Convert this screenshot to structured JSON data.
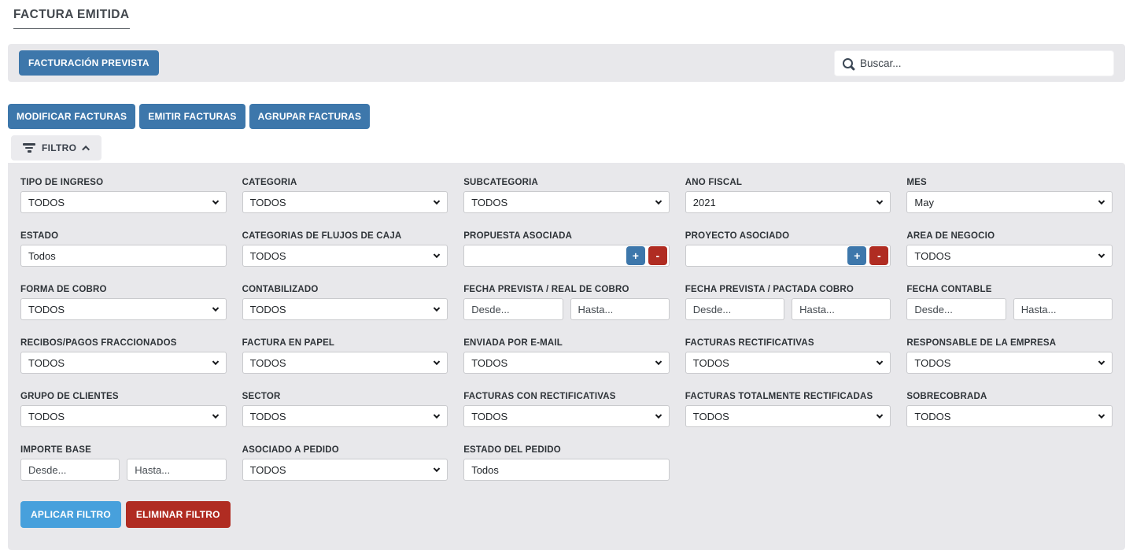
{
  "page": {
    "title": "FACTURA EMITIDA"
  },
  "toolbar": {
    "facturacion_prevista_label": "FACTURACIÓN PREVISTA",
    "search_placeholder": "Buscar..."
  },
  "actions": {
    "modificar_label": "MODIFICAR FACTURAS",
    "emitir_label": "EMITIR FACTURAS",
    "agrupar_label": "AGRUPAR FACTURAS"
  },
  "filter": {
    "toggle_label": "FILTRO",
    "apply_label": "APLICAR FILTRO",
    "clear_label": "ELIMINAR FILTRO",
    "fields": {
      "tipo_de_ingreso": {
        "label": "TIPO DE INGRESO",
        "value": "TODOS"
      },
      "categoria": {
        "label": "CATEGORÍA",
        "value": "TODOS"
      },
      "subcategoria": {
        "label": "SUBCATEGORÍA",
        "value": "TODOS"
      },
      "ano_fiscal": {
        "label": "AÑO FISCAL",
        "value": "2021"
      },
      "mes": {
        "label": "MES",
        "value": "May"
      },
      "estado": {
        "label": "ESTADO",
        "value": "Todos"
      },
      "categorias_flujos_caja": {
        "label": "CATEGORÍAS DE FLUJOS DE CAJA",
        "value": "TODOS"
      },
      "propuesta_asociada": {
        "label": "PROPUESTA ASOCIADA",
        "value": "",
        "add_label": "+",
        "remove_label": "-"
      },
      "proyecto_asociado": {
        "label": "PROYECTO ASOCIADO",
        "value": "",
        "add_label": "+",
        "remove_label": "-"
      },
      "area_de_negocio": {
        "label": "ÁREA DE NEGOCIO",
        "value": "TODOS"
      },
      "forma_de_cobro": {
        "label": "FORMA DE COBRO",
        "value": "TODOS"
      },
      "contabilizado": {
        "label": "CONTABILIZADO",
        "value": "TODOS"
      },
      "fecha_prevista_real_cobro": {
        "label": "FECHA PREVISTA / REAL DE COBRO",
        "from_placeholder": "Desde...",
        "to_placeholder": "Hasta..."
      },
      "fecha_prevista_pactada_cobro": {
        "label": "FECHA PREVISTA / PACTADA COBRO",
        "from_placeholder": "Desde...",
        "to_placeholder": "Hasta..."
      },
      "fecha_contable": {
        "label": "FECHA CONTABLE",
        "from_placeholder": "Desde...",
        "to_placeholder": "Hasta..."
      },
      "recibos_pagos_fraccionados": {
        "label": "RECIBOS/PAGOS FRACCIONADOS",
        "value": "TODOS"
      },
      "factura_en_papel": {
        "label": "FACTURA EN PAPEL",
        "value": "TODOS"
      },
      "enviada_por_email": {
        "label": "ENVIADA POR E-MAIL",
        "value": "TODOS"
      },
      "facturas_rectificativas": {
        "label": "FACTURAS RECTIFICATIVAS",
        "value": "TODOS"
      },
      "responsable_de_la_empresa": {
        "label": "RESPONSABLE DE LA EMPRESA",
        "value": "TODOS"
      },
      "grupo_de_clientes": {
        "label": "GRUPO DE CLIENTES",
        "value": "TODOS"
      },
      "sector": {
        "label": "SECTOR",
        "value": "TODOS"
      },
      "facturas_con_rectificativas": {
        "label": "FACTURAS CON RECTIFICATIVAS",
        "value": "TODOS"
      },
      "facturas_totalmente_rectificadas": {
        "label": "FACTURAS TOTALMENTE RECTIFICADAS",
        "value": "TODOS"
      },
      "sobrecobrada": {
        "label": "SOBRECOBRADA",
        "value": "TODOS"
      },
      "importe_base": {
        "label": "IMPORTE BASE",
        "from_placeholder": "Desde...",
        "to_placeholder": "Hasta..."
      },
      "asociado_a_pedido": {
        "label": "ASOCIADO A PEDIDO",
        "value": "TODOS"
      },
      "estado_del_pedido": {
        "label": "ESTADO DEL PEDIDO",
        "value": "Todos"
      }
    }
  },
  "colors": {
    "primary_blue": "#3d77ab",
    "apply_blue": "#47a0dc",
    "danger_red": "#b02c22",
    "panel_gray": "#e8e8eb",
    "label_dark": "#2e3338"
  }
}
